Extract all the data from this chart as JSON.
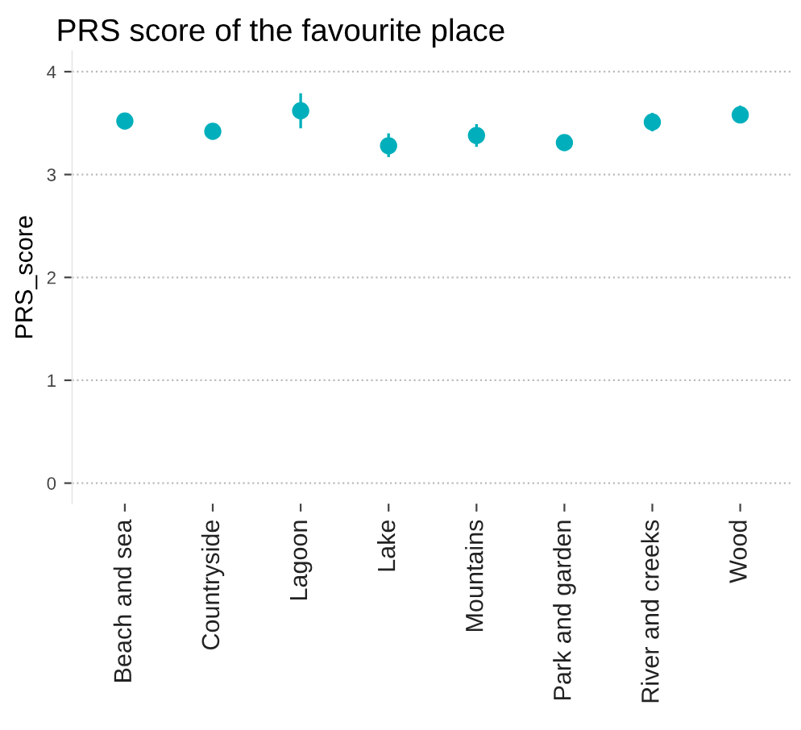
{
  "chart_data": {
    "type": "scatter",
    "title": "PRS score of the favourite place",
    "ylabel": "PRS_score",
    "categories": [
      "Beach and sea",
      "Countryside",
      "Lagoon",
      "Lake",
      "Mountains",
      "Park and garden",
      "River and creeks",
      "Wood"
    ],
    "values": [
      3.52,
      3.42,
      3.62,
      3.28,
      3.38,
      3.31,
      3.51,
      3.58
    ],
    "errors": [
      null,
      0.05,
      [
        3.45,
        3.79
      ],
      [
        3.17,
        3.4
      ],
      [
        3.27,
        3.49
      ],
      null,
      [
        3.42,
        3.6
      ],
      [
        3.52,
        3.67
      ]
    ],
    "color": "#00afbb",
    "marker": "circle",
    "ylim": [
      -0.2,
      4.2
    ],
    "yticks": [
      0,
      1,
      2,
      3,
      4
    ],
    "grid": "y"
  }
}
